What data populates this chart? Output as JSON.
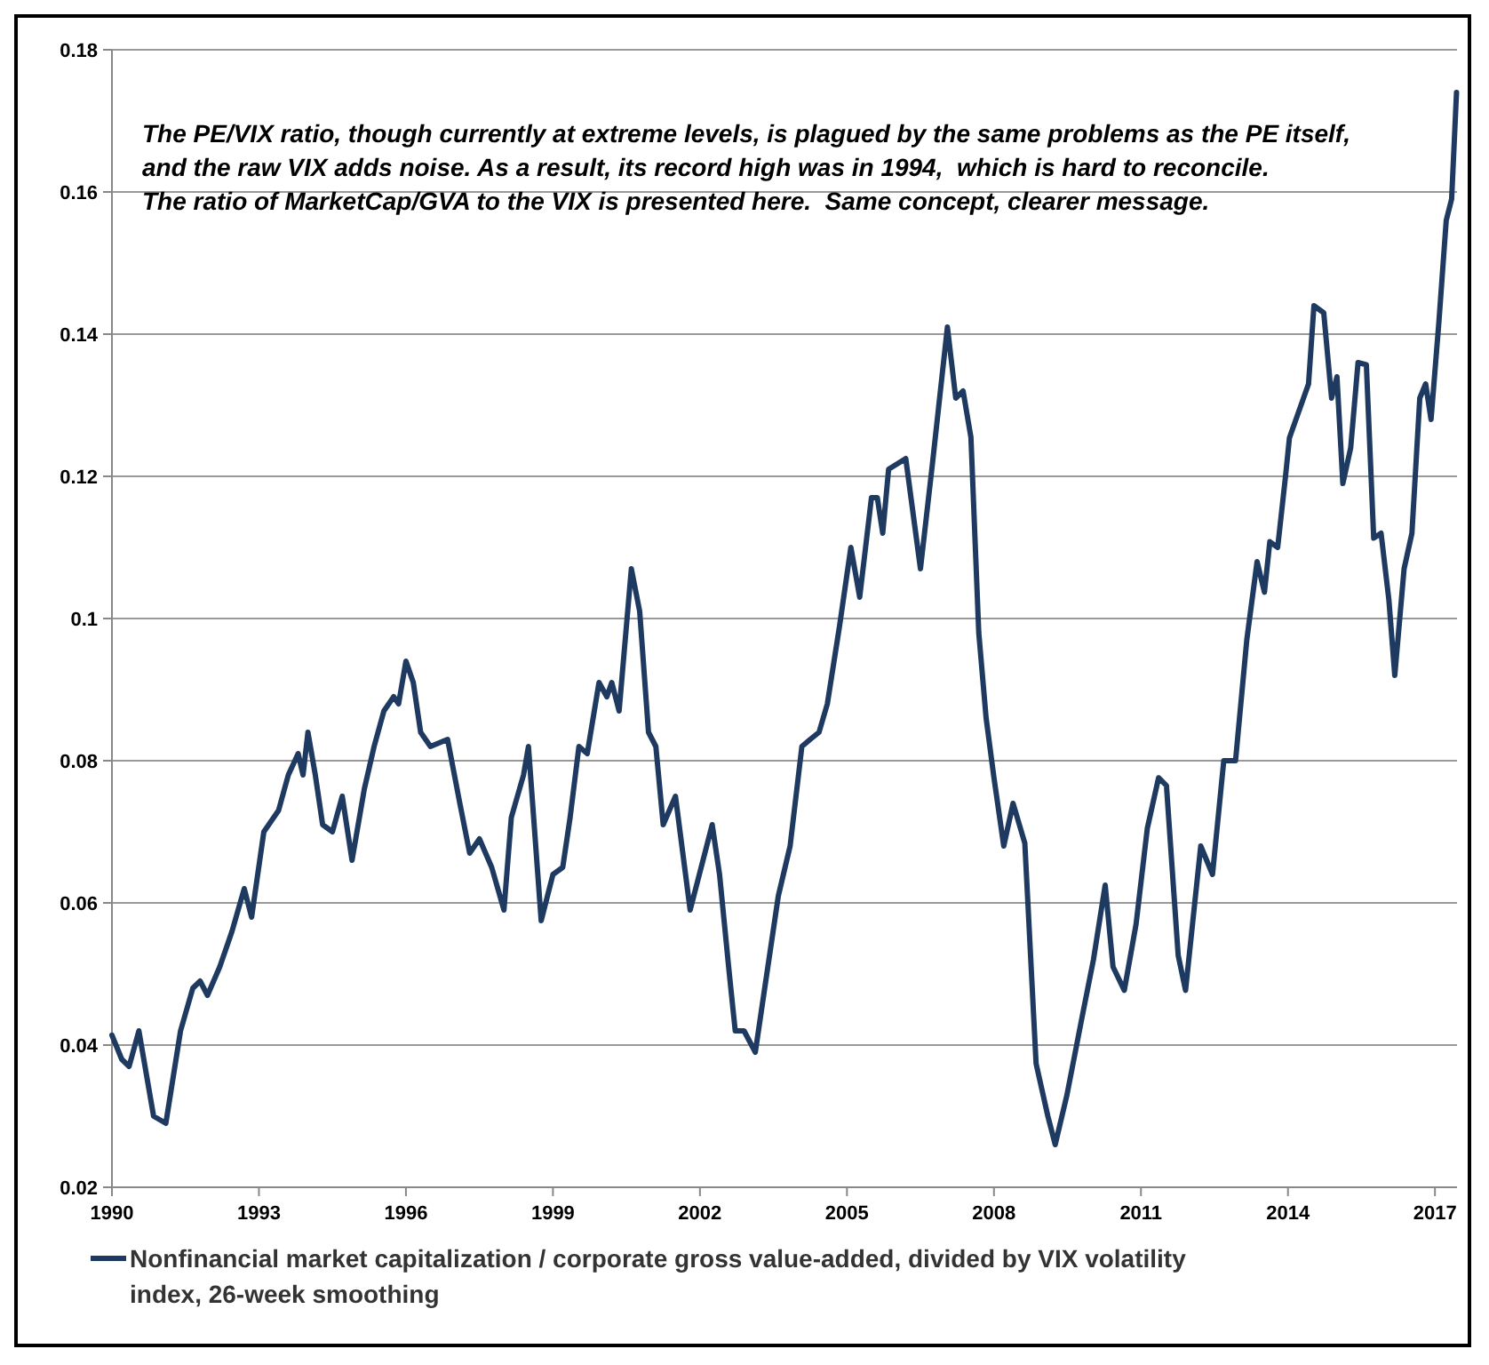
{
  "chart_data": {
    "type": "line",
    "annotations": [
      "The PE/VIX ratio, though currently at extreme levels, is plagued by the same problems as the PE itself,",
      "and the raw VIX adds noise. As a result, its record high was in 1994,  which is hard to reconcile.",
      "The ratio of MarketCap/GVA to the VIX is presented here.  Same concept, clearer message."
    ],
    "xlim": [
      1990,
      2017.45
    ],
    "xticks": [
      1990,
      1993,
      1996,
      1999,
      2002,
      2005,
      2008,
      2011,
      2014,
      2017
    ],
    "ylim": [
      0.02,
      0.18
    ],
    "yticks": [
      {
        "value": 0.02,
        "label": "0.02"
      },
      {
        "value": 0.04,
        "label": "0.04"
      },
      {
        "value": 0.06,
        "label": "0.06"
      },
      {
        "value": 0.08,
        "label": "0.08"
      },
      {
        "value": 0.1,
        "label": "0.1"
      },
      {
        "value": 0.12,
        "label": "0.12"
      },
      {
        "value": 0.14,
        "label": "0.14"
      },
      {
        "value": 0.16,
        "label": "0.16"
      },
      {
        "value": 0.18,
        "label": "0.18"
      }
    ],
    "grid": "y",
    "legend": "bottom",
    "marker": "none",
    "line_style": "solid",
    "series": [
      {
        "name": "Nonfinancial market capitalization / corporate gross value-added, divided by VIX volatility index, 26-week smoothing",
        "color": "#1f3a60",
        "x": [
          1990.0,
          1990.2,
          1990.35,
          1990.55,
          1990.85,
          1991.1,
          1991.4,
          1991.65,
          1991.8,
          1991.95,
          1992.2,
          1992.45,
          1992.7,
          1992.85,
          1993.1,
          1993.4,
          1993.6,
          1993.8,
          1993.9,
          1994.0,
          1994.15,
          1994.3,
          1994.5,
          1994.7,
          1994.9,
          1995.15,
          1995.35,
          1995.55,
          1995.75,
          1995.85,
          1996.0,
          1996.15,
          1996.3,
          1996.5,
          1996.85,
          1997.1,
          1997.3,
          1997.5,
          1997.75,
          1998.0,
          1998.15,
          1998.4,
          1998.5,
          1998.76,
          1999.0,
          1999.2,
          1999.35,
          1999.53,
          1999.7,
          1999.94,
          2000.1,
          2000.2,
          2000.35,
          2000.6,
          2000.77,
          2000.95,
          2001.1,
          2001.25,
          2001.5,
          2001.8,
          2001.95,
          2002.25,
          2002.4,
          2002.6,
          2002.72,
          2002.9,
          2003.13,
          2003.3,
          2003.6,
          2003.84,
          2004.08,
          2004.25,
          2004.43,
          2004.6,
          2004.85,
          2005.08,
          2005.26,
          2005.5,
          2005.62,
          2005.73,
          2005.85,
          2006.2,
          2006.5,
          2006.74,
          2007.05,
          2007.22,
          2007.37,
          2007.53,
          2007.69,
          2007.84,
          2008.0,
          2008.2,
          2008.39,
          2008.63,
          2008.86,
          2009.1,
          2009.25,
          2009.49,
          2009.8,
          2010.03,
          2010.27,
          2010.43,
          2010.66,
          2010.9,
          2011.13,
          2011.36,
          2011.52,
          2011.76,
          2011.91,
          2012.22,
          2012.46,
          2012.69,
          2012.93,
          2013.16,
          2013.37,
          2013.52,
          2013.63,
          2013.79,
          2013.95,
          2014.03,
          2014.42,
          2014.53,
          2014.73,
          2014.89,
          2015.0,
          2015.12,
          2015.28,
          2015.43,
          2015.6,
          2015.75,
          2015.9,
          2016.06,
          2016.18,
          2016.37,
          2016.53,
          2016.69,
          2016.81,
          2016.92,
          2017.08,
          2017.23,
          2017.34,
          2017.44
        ],
        "values": [
          0.0414,
          0.038,
          0.037,
          0.042,
          0.03,
          0.029,
          0.042,
          0.048,
          0.049,
          0.047,
          0.051,
          0.056,
          0.062,
          0.058,
          0.07,
          0.073,
          0.078,
          0.081,
          0.078,
          0.084,
          0.078,
          0.071,
          0.07,
          0.075,
          0.066,
          0.076,
          0.082,
          0.087,
          0.089,
          0.088,
          0.094,
          0.091,
          0.084,
          0.082,
          0.083,
          0.074,
          0.067,
          0.069,
          0.065,
          0.059,
          0.072,
          0.078,
          0.082,
          0.0575,
          0.064,
          0.065,
          0.072,
          0.082,
          0.081,
          0.091,
          0.089,
          0.091,
          0.087,
          0.107,
          0.101,
          0.084,
          0.082,
          0.071,
          0.075,
          0.059,
          0.063,
          0.071,
          0.064,
          0.05,
          0.042,
          0.042,
          0.039,
          0.047,
          0.061,
          0.068,
          0.082,
          0.083,
          0.084,
          0.088,
          0.099,
          0.11,
          0.103,
          0.117,
          0.117,
          0.112,
          0.121,
          0.1225,
          0.107,
          0.1215,
          0.141,
          0.131,
          0.132,
          0.1255,
          0.098,
          0.086,
          0.0776,
          0.068,
          0.074,
          0.0684,
          0.0374,
          0.03,
          0.026,
          0.033,
          0.044,
          0.052,
          0.0625,
          0.051,
          0.0477,
          0.057,
          0.0705,
          0.0776,
          0.0765,
          0.0526,
          0.0477,
          0.068,
          0.064,
          0.08,
          0.08,
          0.097,
          0.108,
          0.1037,
          0.1108,
          0.11,
          0.12,
          0.1254,
          0.133,
          0.144,
          0.143,
          0.131,
          0.134,
          0.119,
          0.124,
          0.136,
          0.1357,
          0.1113,
          0.112,
          0.1026,
          0.092,
          0.107,
          0.112,
          0.131,
          0.133,
          0.128,
          0.1417,
          0.156,
          0.159,
          0.174
        ]
      }
    ]
  }
}
